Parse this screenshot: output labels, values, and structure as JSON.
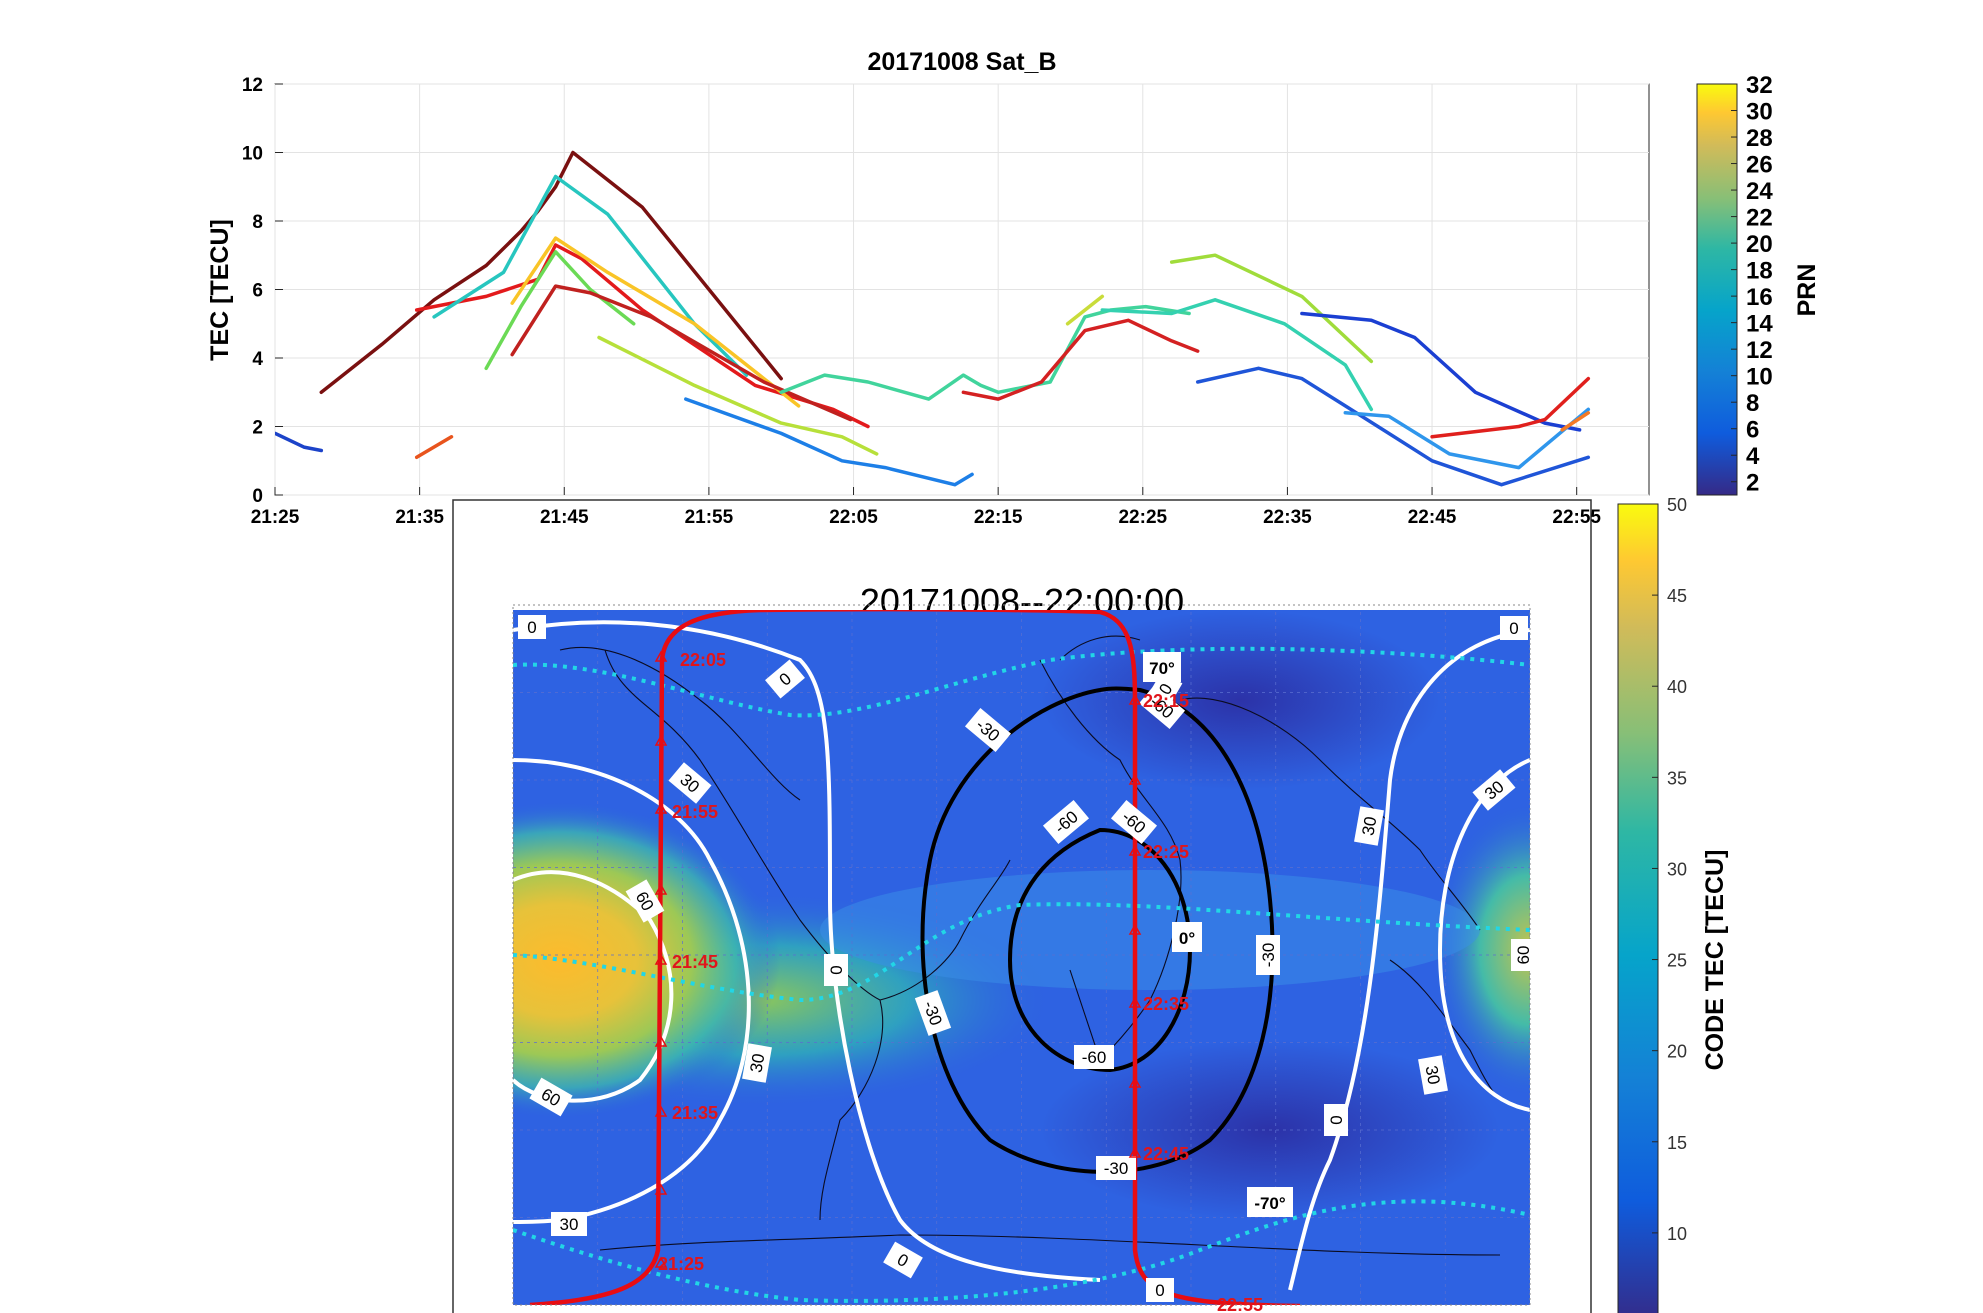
{
  "top_chart": {
    "title": "20171008  Sat_B",
    "ylabel": "TEC [TECU]",
    "colorbar_label": "PRN",
    "colorbar_ticks": [
      "2",
      "4",
      "6",
      "8",
      "10",
      "12",
      "14",
      "16",
      "18",
      "20",
      "22",
      "24",
      "26",
      "28",
      "30",
      "32"
    ],
    "x_ticks": [
      "21:25",
      "21:35",
      "21:45",
      "21:55",
      "22:05",
      "22:15",
      "22:25",
      "22:35",
      "22:45",
      "22:55"
    ],
    "y_ticks": [
      "0",
      "2",
      "4",
      "6",
      "8",
      "10",
      "12"
    ]
  },
  "map": {
    "title": "20171008--22:00:00",
    "colorbar_label": "CODE TEC [TECU]",
    "colorbar_ticks": [
      "50",
      "45",
      "40",
      "35",
      "30",
      "25",
      "20",
      "15",
      "10"
    ],
    "contour_labels": [
      "0",
      "0",
      "0",
      "0",
      "0",
      "0",
      "0",
      "30",
      "30",
      "30",
      "30",
      "30",
      "60",
      "60",
      "60",
      "-30",
      "-30",
      "-30",
      "-30",
      "-60",
      "-60",
      "-60",
      "-60",
      "60",
      "30"
    ],
    "lat_labels": [
      "70°",
      "0°",
      "-70°"
    ],
    "time_marks": [
      "22:05",
      "21:55",
      "21:45",
      "21:35",
      "21:25",
      "22:15",
      "22:25",
      "22:35",
      "22:45",
      "22:55"
    ]
  },
  "chart_data": [
    {
      "type": "line",
      "title": "20171008  Sat_B",
      "ylabel": "TEC [TECU]",
      "xlabel": "",
      "ylim": [
        0,
        12
      ],
      "x_ticks": [
        "21:25",
        "21:35",
        "21:45",
        "21:55",
        "22:05",
        "22:15",
        "22:25",
        "22:35",
        "22:45",
        "22:55"
      ],
      "color_scale": {
        "label": "PRN",
        "range": [
          1,
          32
        ]
      },
      "series": [
        {
          "prn": 28,
          "color": "#e8541d",
          "x": [
            21.58,
            21.62
          ],
          "y": [
            1.1,
            1.7
          ]
        },
        {
          "prn": 6,
          "color": "#1c43c9",
          "x": [
            21.417,
            21.45,
            21.47
          ],
          "y": [
            1.8,
            1.4,
            1.3
          ]
        },
        {
          "prn": 32,
          "color": "#7a1010",
          "x": [
            21.47,
            21.54,
            21.6,
            21.66,
            21.7,
            21.72,
            21.74,
            21.76,
            21.84,
            22.0
          ],
          "y": [
            3.0,
            4.4,
            5.7,
            6.7,
            7.7,
            8.3,
            9.0,
            10.0,
            8.4,
            3.4
          ]
        },
        {
          "prn": 30,
          "color": "#e31a1c",
          "x": [
            21.58,
            21.66,
            21.72,
            21.74,
            21.77,
            21.84,
            21.97,
            22.06,
            22.1
          ],
          "y": [
            5.4,
            5.8,
            6.3,
            7.3,
            6.9,
            5.4,
            3.2,
            2.5,
            2.0
          ]
        },
        {
          "prn": 15,
          "color": "#27c6bf",
          "x": [
            21.6,
            21.68,
            21.74,
            21.8,
            21.9,
            21.96
          ],
          "y": [
            5.2,
            6.5,
            9.3,
            8.2,
            5.0,
            3.5
          ]
        },
        {
          "prn": 26,
          "color": "#f9c427",
          "x": [
            21.69,
            21.74,
            21.8,
            21.9,
            21.98,
            22.02
          ],
          "y": [
            5.6,
            7.5,
            6.5,
            5.0,
            3.4,
            2.6
          ]
        },
        {
          "prn": 20,
          "color": "#6bda55",
          "x": [
            21.66,
            21.7,
            21.74,
            21.78,
            21.83
          ],
          "y": [
            3.7,
            5.5,
            7.1,
            6.0,
            5.0
          ]
        },
        {
          "prn": 31,
          "color": "#c0211f",
          "x": [
            21.69,
            21.74,
            21.78,
            21.85,
            21.98,
            22.08
          ],
          "y": [
            4.1,
            6.1,
            5.9,
            5.2,
            3.3,
            2.2
          ]
        },
        {
          "prn": 22,
          "color": "#b7e03a",
          "x": [
            21.79,
            21.9,
            22.0,
            22.07,
            22.11
          ],
          "y": [
            4.6,
            3.2,
            2.1,
            1.7,
            1.2
          ]
        },
        {
          "prn": 10,
          "color": "#1d7fe7",
          "x": [
            21.89,
            22.0,
            22.07,
            22.12,
            22.2,
            22.22
          ],
          "y": [
            2.8,
            1.8,
            1.0,
            0.8,
            0.3,
            0.6
          ]
        },
        {
          "prn": 18,
          "color": "#41d49c",
          "x": [
            22.0,
            22.05,
            22.1,
            22.17,
            22.21,
            22.23,
            22.25,
            22.31,
            22.35,
            22.38,
            22.42,
            22.47
          ],
          "y": [
            3.0,
            3.5,
            3.3,
            2.8,
            3.5,
            3.2,
            3.0,
            3.3,
            5.2,
            5.4,
            5.5,
            5.3
          ]
        },
        {
          "prn": 29,
          "color": "#d42122",
          "x": [
            22.21,
            22.25,
            22.3,
            22.35,
            22.4,
            22.45,
            22.48
          ],
          "y": [
            3.0,
            2.8,
            3.3,
            4.8,
            5.1,
            4.5,
            4.2
          ]
        },
        {
          "prn": 21,
          "color": "#c9dc3a",
          "x": [
            22.33,
            22.37
          ],
          "y": [
            5.0,
            5.8
          ]
        },
        {
          "prn": 20,
          "color": "#a0dc3b",
          "x": [
            22.45,
            22.5,
            22.6,
            22.68
          ],
          "y": [
            6.8,
            7.0,
            5.8,
            3.9
          ]
        },
        {
          "prn": 16,
          "color": "#34d1b0",
          "x": [
            22.37,
            22.45,
            22.5,
            22.58,
            22.65,
            22.68
          ],
          "y": [
            5.4,
            5.3,
            5.7,
            5.0,
            3.8,
            2.5
          ]
        },
        {
          "prn": 8,
          "color": "#1f55d8",
          "x": [
            22.48,
            22.55,
            22.6,
            22.65,
            22.75,
            22.83,
            22.93
          ],
          "y": [
            3.3,
            3.7,
            3.4,
            2.6,
            1.0,
            0.3,
            1.1
          ]
        },
        {
          "prn": 4,
          "color": "#1b3fd2",
          "x": [
            22.6,
            22.68,
            22.73,
            22.8,
            22.88,
            22.92
          ],
          "y": [
            5.3,
            5.1,
            4.6,
            3.0,
            2.1,
            1.9
          ]
        },
        {
          "prn": 12,
          "color": "#2f96ec",
          "x": [
            22.65,
            22.7,
            22.77,
            22.85,
            22.93
          ],
          "y": [
            2.4,
            2.3,
            1.2,
            0.8,
            2.5
          ]
        },
        {
          "prn": 29,
          "color": "#e0201d",
          "x": [
            22.75,
            22.85,
            22.88,
            22.93
          ],
          "y": [
            1.7,
            2.0,
            2.2,
            3.4
          ]
        },
        {
          "prn": 27,
          "color": "#f47a25",
          "x": [
            22.9,
            22.93
          ],
          "y": [
            1.9,
            2.4
          ]
        }
      ]
    },
    {
      "type": "heatmap",
      "title": "20171008--22:00:00",
      "colorbar_label": "CODE TEC [TECU]",
      "color_range": [
        5,
        50
      ],
      "colorbar_ticks": [
        10,
        15,
        20,
        25,
        30,
        35,
        40,
        45,
        50
      ]
    }
  ]
}
